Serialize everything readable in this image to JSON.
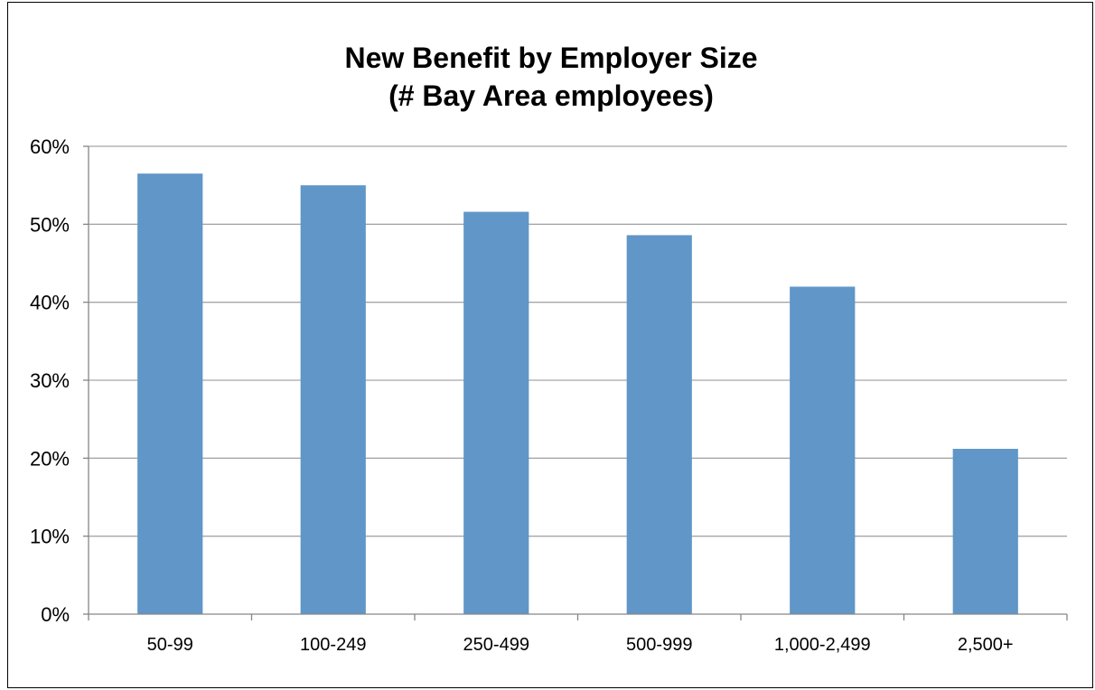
{
  "chart_data": {
    "type": "bar",
    "title": "New Benefit by Employer Size",
    "subtitle": "(# Bay Area employees)",
    "xlabel": "",
    "ylabel": "",
    "categories": [
      "50-99",
      "100-249",
      "250-499",
      "500-999",
      "1,000-2,499",
      "2,500+"
    ],
    "values": [
      56.5,
      55.0,
      51.6,
      48.6,
      42.0,
      21.2
    ],
    "ylim": [
      0,
      60
    ],
    "yticks": [
      0,
      10,
      20,
      30,
      40,
      50,
      60
    ],
    "ytick_labels": [
      "0%",
      "10%",
      "20%",
      "30%",
      "40%",
      "50%",
      "60%"
    ],
    "grid": true,
    "legend": "none",
    "bar_color": "#6096C8",
    "grid_color": "#A6A6A6"
  }
}
